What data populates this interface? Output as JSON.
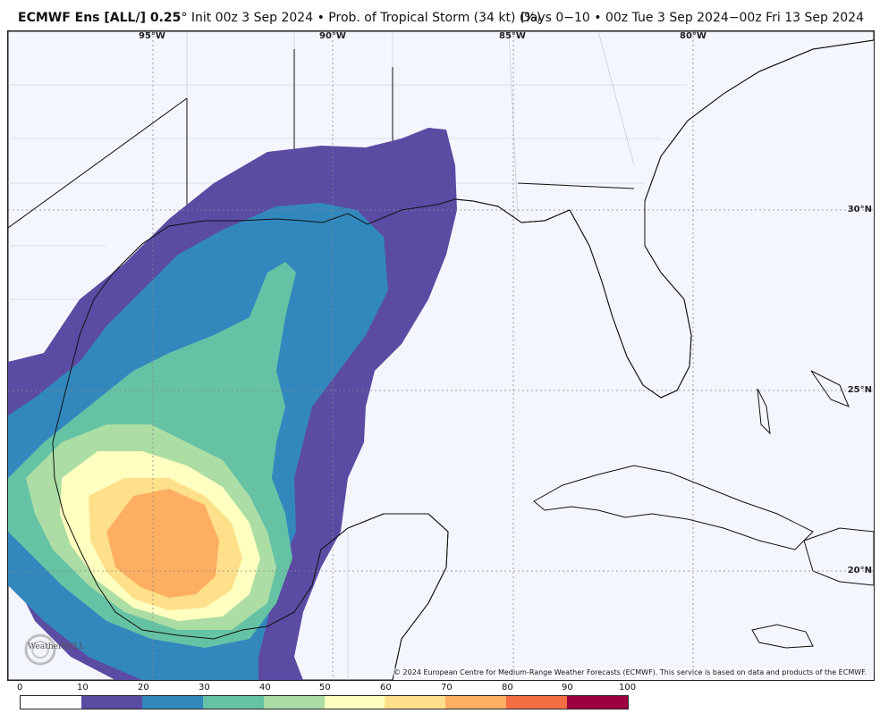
{
  "header": {
    "model": "ECMWF Ens [ALL/] 0.25",
    "degree": "°",
    "init": "Init 00z 3 Sep 2024",
    "bullet": "•",
    "product": "Prob. of Tropical Storm (34 kt) (%)",
    "valid": "Days 0−10 • 00z Tue 3 Sep 2024−00z Fri 13 Sep 2024"
  },
  "map": {
    "longitudes": [
      "95°W",
      "90°W",
      "85°W",
      "80°W"
    ],
    "latitudes": [
      "30°N",
      "25°N",
      "20°N"
    ],
    "copyright": "© 2024 European Centre for Medium-Range Weather Forecasts (ECMWF). This service is based on data and products of the ECMWF.",
    "logo": "WeatherBELL",
    "ocean_color": "#f4f6fd",
    "land_color": "#f4f6fd"
  },
  "colorbar": {
    "ticks": [
      "0",
      "10",
      "20",
      "30",
      "40",
      "50",
      "60",
      "70",
      "80",
      "90",
      "100"
    ],
    "colors": [
      "#ffffff",
      "#5b4ba3",
      "#3288bd",
      "#66c2a5",
      "#abdda4",
      "#ffffbf",
      "#fee08b",
      "#fdae61",
      "#f46d43",
      "#9e0142"
    ]
  }
}
